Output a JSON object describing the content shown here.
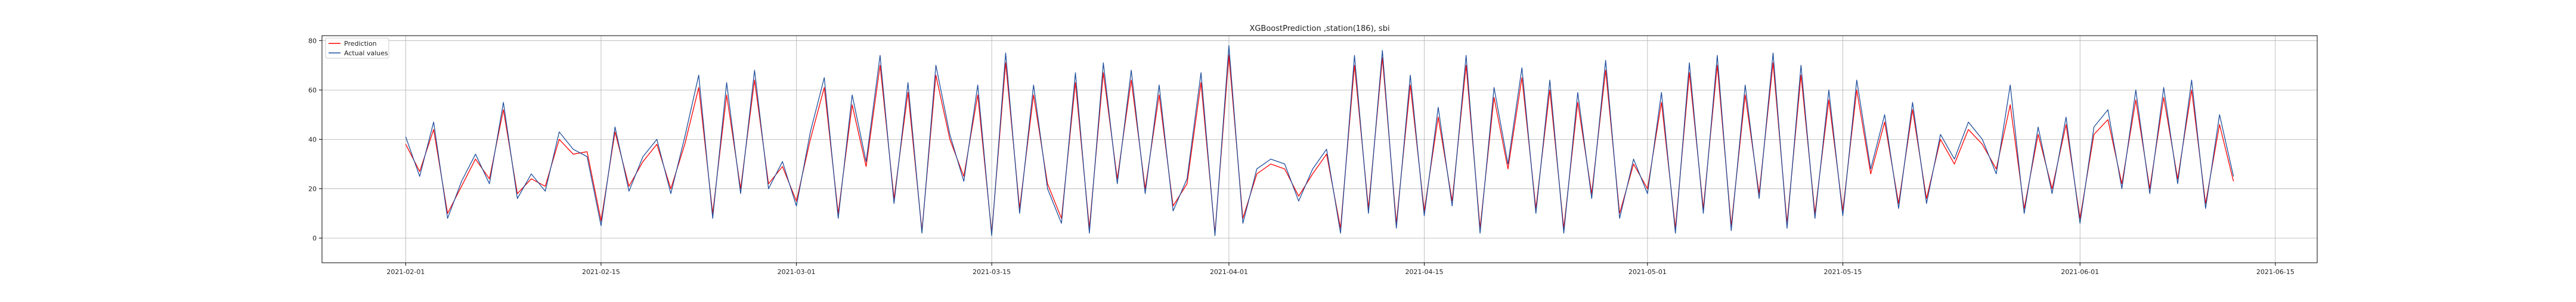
{
  "chart_data": {
    "type": "line",
    "title": "XGBoostPrediction ,station(186), sbi",
    "xlabel": "",
    "ylabel": "",
    "x_range": [
      "2021-01-26",
      "2021-06-18"
    ],
    "ylim": [
      -10,
      82
    ],
    "x_ticks": [
      "2021-02-01",
      "2021-02-15",
      "2021-03-01",
      "2021-03-15",
      "2021-04-01",
      "2021-04-15",
      "2021-05-01",
      "2021-05-15",
      "2021-06-01",
      "2021-06-15"
    ],
    "y_ticks": [
      0,
      20,
      40,
      60,
      80
    ],
    "grid": true,
    "legend_position": "top-left",
    "series": [
      {
        "name": "Prediction",
        "color": "#ff0000",
        "points": [
          [
            "2021-02-01",
            38
          ],
          [
            "2021-02-02",
            27
          ],
          [
            "2021-02-03",
            44
          ],
          [
            "2021-02-04",
            10
          ],
          [
            "2021-02-05",
            21
          ],
          [
            "2021-02-06",
            32
          ],
          [
            "2021-02-07",
            24
          ],
          [
            "2021-02-08",
            52
          ],
          [
            "2021-02-09",
            18
          ],
          [
            "2021-02-10",
            24
          ],
          [
            "2021-02-11",
            21
          ],
          [
            "2021-02-12",
            40
          ],
          [
            "2021-02-13",
            34
          ],
          [
            "2021-02-14",
            35
          ],
          [
            "2021-02-15",
            7
          ],
          [
            "2021-02-16",
            43
          ],
          [
            "2021-02-17",
            21
          ],
          [
            "2021-02-18",
            31
          ],
          [
            "2021-02-19",
            38
          ],
          [
            "2021-02-20",
            20
          ],
          [
            "2021-02-21",
            38
          ],
          [
            "2021-02-22",
            61
          ],
          [
            "2021-02-23",
            10
          ],
          [
            "2021-02-24",
            58
          ],
          [
            "2021-02-25",
            20
          ],
          [
            "2021-02-26",
            64
          ],
          [
            "2021-02-27",
            22
          ],
          [
            "2021-02-28",
            29
          ],
          [
            "2021-03-01",
            15
          ],
          [
            "2021-03-02",
            40
          ],
          [
            "2021-03-03",
            61
          ],
          [
            "2021-03-04",
            10
          ],
          [
            "2021-03-05",
            54
          ],
          [
            "2021-03-06",
            29
          ],
          [
            "2021-03-07",
            70
          ],
          [
            "2021-03-08",
            16
          ],
          [
            "2021-03-09",
            59
          ],
          [
            "2021-03-10",
            3
          ],
          [
            "2021-03-11",
            66
          ],
          [
            "2021-03-12",
            40
          ],
          [
            "2021-03-13",
            25
          ],
          [
            "2021-03-14",
            58
          ],
          [
            "2021-03-15",
            2
          ],
          [
            "2021-03-16",
            71
          ],
          [
            "2021-03-17",
            12
          ],
          [
            "2021-03-18",
            58
          ],
          [
            "2021-03-19",
            22
          ],
          [
            "2021-03-20",
            8
          ],
          [
            "2021-03-21",
            63
          ],
          [
            "2021-03-22",
            4
          ],
          [
            "2021-03-23",
            67
          ],
          [
            "2021-03-24",
            24
          ],
          [
            "2021-03-25",
            64
          ],
          [
            "2021-03-26",
            20
          ],
          [
            "2021-03-27",
            58
          ],
          [
            "2021-03-28",
            13
          ],
          [
            "2021-03-29",
            22
          ],
          [
            "2021-03-30",
            63
          ],
          [
            "2021-03-31",
            2
          ],
          [
            "2021-04-01",
            74
          ],
          [
            "2021-04-02",
            8
          ],
          [
            "2021-04-03",
            26
          ],
          [
            "2021-04-04",
            30
          ],
          [
            "2021-04-05",
            28
          ],
          [
            "2021-04-06",
            17
          ],
          [
            "2021-04-07",
            26
          ],
          [
            "2021-04-08",
            34
          ],
          [
            "2021-04-09",
            4
          ],
          [
            "2021-04-10",
            70
          ],
          [
            "2021-04-11",
            12
          ],
          [
            "2021-04-12",
            73
          ],
          [
            "2021-04-13",
            6
          ],
          [
            "2021-04-14",
            62
          ],
          [
            "2021-04-15",
            11
          ],
          [
            "2021-04-16",
            49
          ],
          [
            "2021-04-17",
            15
          ],
          [
            "2021-04-18",
            70
          ],
          [
            "2021-04-19",
            4
          ],
          [
            "2021-04-20",
            57
          ],
          [
            "2021-04-21",
            28
          ],
          [
            "2021-04-22",
            65
          ],
          [
            "2021-04-23",
            12
          ],
          [
            "2021-04-24",
            60
          ],
          [
            "2021-04-25",
            4
          ],
          [
            "2021-04-26",
            55
          ],
          [
            "2021-04-27",
            18
          ],
          [
            "2021-04-28",
            68
          ],
          [
            "2021-04-29",
            10
          ],
          [
            "2021-04-30",
            30
          ],
          [
            "2021-05-01",
            20
          ],
          [
            "2021-05-02",
            55
          ],
          [
            "2021-05-03",
            4
          ],
          [
            "2021-05-04",
            67
          ],
          [
            "2021-05-05",
            12
          ],
          [
            "2021-05-06",
            70
          ],
          [
            "2021-05-07",
            5
          ],
          [
            "2021-05-08",
            58
          ],
          [
            "2021-05-09",
            18
          ],
          [
            "2021-05-10",
            71
          ],
          [
            "2021-05-11",
            6
          ],
          [
            "2021-05-12",
            66
          ],
          [
            "2021-05-13",
            10
          ],
          [
            "2021-05-14",
            56
          ],
          [
            "2021-05-15",
            11
          ],
          [
            "2021-05-16",
            60
          ],
          [
            "2021-05-17",
            26
          ],
          [
            "2021-05-18",
            47
          ],
          [
            "2021-05-19",
            14
          ],
          [
            "2021-05-20",
            52
          ],
          [
            "2021-05-21",
            16
          ],
          [
            "2021-05-22",
            40
          ],
          [
            "2021-05-23",
            30
          ],
          [
            "2021-05-24",
            44
          ],
          [
            "2021-05-25",
            38
          ],
          [
            "2021-05-26",
            28
          ],
          [
            "2021-05-27",
            54
          ],
          [
            "2021-05-28",
            12
          ],
          [
            "2021-05-29",
            42
          ],
          [
            "2021-05-30",
            20
          ],
          [
            "2021-05-31",
            46
          ],
          [
            "2021-06-01",
            8
          ],
          [
            "2021-06-02",
            42
          ],
          [
            "2021-06-03",
            48
          ],
          [
            "2021-06-04",
            22
          ],
          [
            "2021-06-05",
            56
          ],
          [
            "2021-06-06",
            20
          ],
          [
            "2021-06-07",
            57
          ],
          [
            "2021-06-08",
            24
          ],
          [
            "2021-06-09",
            60
          ],
          [
            "2021-06-10",
            14
          ],
          [
            "2021-06-11",
            46
          ],
          [
            "2021-06-12",
            23
          ]
        ]
      },
      {
        "name": "Actual values",
        "color": "#1f4e9c",
        "points": [
          [
            "2021-02-01",
            41
          ],
          [
            "2021-02-02",
            25
          ],
          [
            "2021-02-03",
            47
          ],
          [
            "2021-02-04",
            8
          ],
          [
            "2021-02-05",
            23
          ],
          [
            "2021-02-06",
            34
          ],
          [
            "2021-02-07",
            22
          ],
          [
            "2021-02-08",
            55
          ],
          [
            "2021-02-09",
            16
          ],
          [
            "2021-02-10",
            26
          ],
          [
            "2021-02-11",
            19
          ],
          [
            "2021-02-12",
            43
          ],
          [
            "2021-02-13",
            36
          ],
          [
            "2021-02-14",
            33
          ],
          [
            "2021-02-15",
            5
          ],
          [
            "2021-02-16",
            45
          ],
          [
            "2021-02-17",
            19
          ],
          [
            "2021-02-18",
            33
          ],
          [
            "2021-02-19",
            40
          ],
          [
            "2021-02-20",
            18
          ],
          [
            "2021-02-21",
            41
          ],
          [
            "2021-02-22",
            66
          ],
          [
            "2021-02-23",
            8
          ],
          [
            "2021-02-24",
            63
          ],
          [
            "2021-02-25",
            18
          ],
          [
            "2021-02-26",
            68
          ],
          [
            "2021-02-27",
            20
          ],
          [
            "2021-02-28",
            31
          ],
          [
            "2021-03-01",
            13
          ],
          [
            "2021-03-02",
            43
          ],
          [
            "2021-03-03",
            65
          ],
          [
            "2021-03-04",
            8
          ],
          [
            "2021-03-05",
            58
          ],
          [
            "2021-03-06",
            31
          ],
          [
            "2021-03-07",
            74
          ],
          [
            "2021-03-08",
            14
          ],
          [
            "2021-03-09",
            63
          ],
          [
            "2021-03-10",
            2
          ],
          [
            "2021-03-11",
            70
          ],
          [
            "2021-03-12",
            42
          ],
          [
            "2021-03-13",
            23
          ],
          [
            "2021-03-14",
            62
          ],
          [
            "2021-03-15",
            1
          ],
          [
            "2021-03-16",
            75
          ],
          [
            "2021-03-17",
            10
          ],
          [
            "2021-03-18",
            62
          ],
          [
            "2021-03-19",
            20
          ],
          [
            "2021-03-20",
            6
          ],
          [
            "2021-03-21",
            67
          ],
          [
            "2021-03-22",
            2
          ],
          [
            "2021-03-23",
            71
          ],
          [
            "2021-03-24",
            22
          ],
          [
            "2021-03-25",
            68
          ],
          [
            "2021-03-26",
            18
          ],
          [
            "2021-03-27",
            62
          ],
          [
            "2021-03-28",
            11
          ],
          [
            "2021-03-29",
            24
          ],
          [
            "2021-03-30",
            67
          ],
          [
            "2021-03-31",
            1
          ],
          [
            "2021-04-01",
            78
          ],
          [
            "2021-04-02",
            6
          ],
          [
            "2021-04-03",
            28
          ],
          [
            "2021-04-04",
            32
          ],
          [
            "2021-04-05",
            30
          ],
          [
            "2021-04-06",
            15
          ],
          [
            "2021-04-07",
            28
          ],
          [
            "2021-04-08",
            36
          ],
          [
            "2021-04-09",
            2
          ],
          [
            "2021-04-10",
            74
          ],
          [
            "2021-04-11",
            10
          ],
          [
            "2021-04-12",
            76
          ],
          [
            "2021-04-13",
            4
          ],
          [
            "2021-04-14",
            66
          ],
          [
            "2021-04-15",
            9
          ],
          [
            "2021-04-16",
            53
          ],
          [
            "2021-04-17",
            13
          ],
          [
            "2021-04-18",
            74
          ],
          [
            "2021-04-19",
            2
          ],
          [
            "2021-04-20",
            61
          ],
          [
            "2021-04-21",
            30
          ],
          [
            "2021-04-22",
            69
          ],
          [
            "2021-04-23",
            10
          ],
          [
            "2021-04-24",
            64
          ],
          [
            "2021-04-25",
            2
          ],
          [
            "2021-04-26",
            59
          ],
          [
            "2021-04-27",
            16
          ],
          [
            "2021-04-28",
            72
          ],
          [
            "2021-04-29",
            8
          ],
          [
            "2021-04-30",
            32
          ],
          [
            "2021-05-01",
            18
          ],
          [
            "2021-05-02",
            59
          ],
          [
            "2021-05-03",
            2
          ],
          [
            "2021-05-04",
            71
          ],
          [
            "2021-05-05",
            10
          ],
          [
            "2021-05-06",
            74
          ],
          [
            "2021-05-07",
            3
          ],
          [
            "2021-05-08",
            62
          ],
          [
            "2021-05-09",
            16
          ],
          [
            "2021-05-10",
            75
          ],
          [
            "2021-05-11",
            4
          ],
          [
            "2021-05-12",
            70
          ],
          [
            "2021-05-13",
            8
          ],
          [
            "2021-05-14",
            60
          ],
          [
            "2021-05-15",
            9
          ],
          [
            "2021-05-16",
            64
          ],
          [
            "2021-05-17",
            28
          ],
          [
            "2021-05-18",
            50
          ],
          [
            "2021-05-19",
            12
          ],
          [
            "2021-05-20",
            55
          ],
          [
            "2021-05-21",
            14
          ],
          [
            "2021-05-22",
            42
          ],
          [
            "2021-05-23",
            32
          ],
          [
            "2021-05-24",
            47
          ],
          [
            "2021-05-25",
            40
          ],
          [
            "2021-05-26",
            26
          ],
          [
            "2021-05-27",
            62
          ],
          [
            "2021-05-28",
            10
          ],
          [
            "2021-05-29",
            45
          ],
          [
            "2021-05-30",
            18
          ],
          [
            "2021-05-31",
            49
          ],
          [
            "2021-06-01",
            6
          ],
          [
            "2021-06-02",
            45
          ],
          [
            "2021-06-03",
            52
          ],
          [
            "2021-06-04",
            20
          ],
          [
            "2021-06-05",
            60
          ],
          [
            "2021-06-06",
            18
          ],
          [
            "2021-06-07",
            61
          ],
          [
            "2021-06-08",
            22
          ],
          [
            "2021-06-09",
            64
          ],
          [
            "2021-06-10",
            12
          ],
          [
            "2021-06-11",
            50
          ],
          [
            "2021-06-12",
            25
          ]
        ]
      }
    ]
  }
}
